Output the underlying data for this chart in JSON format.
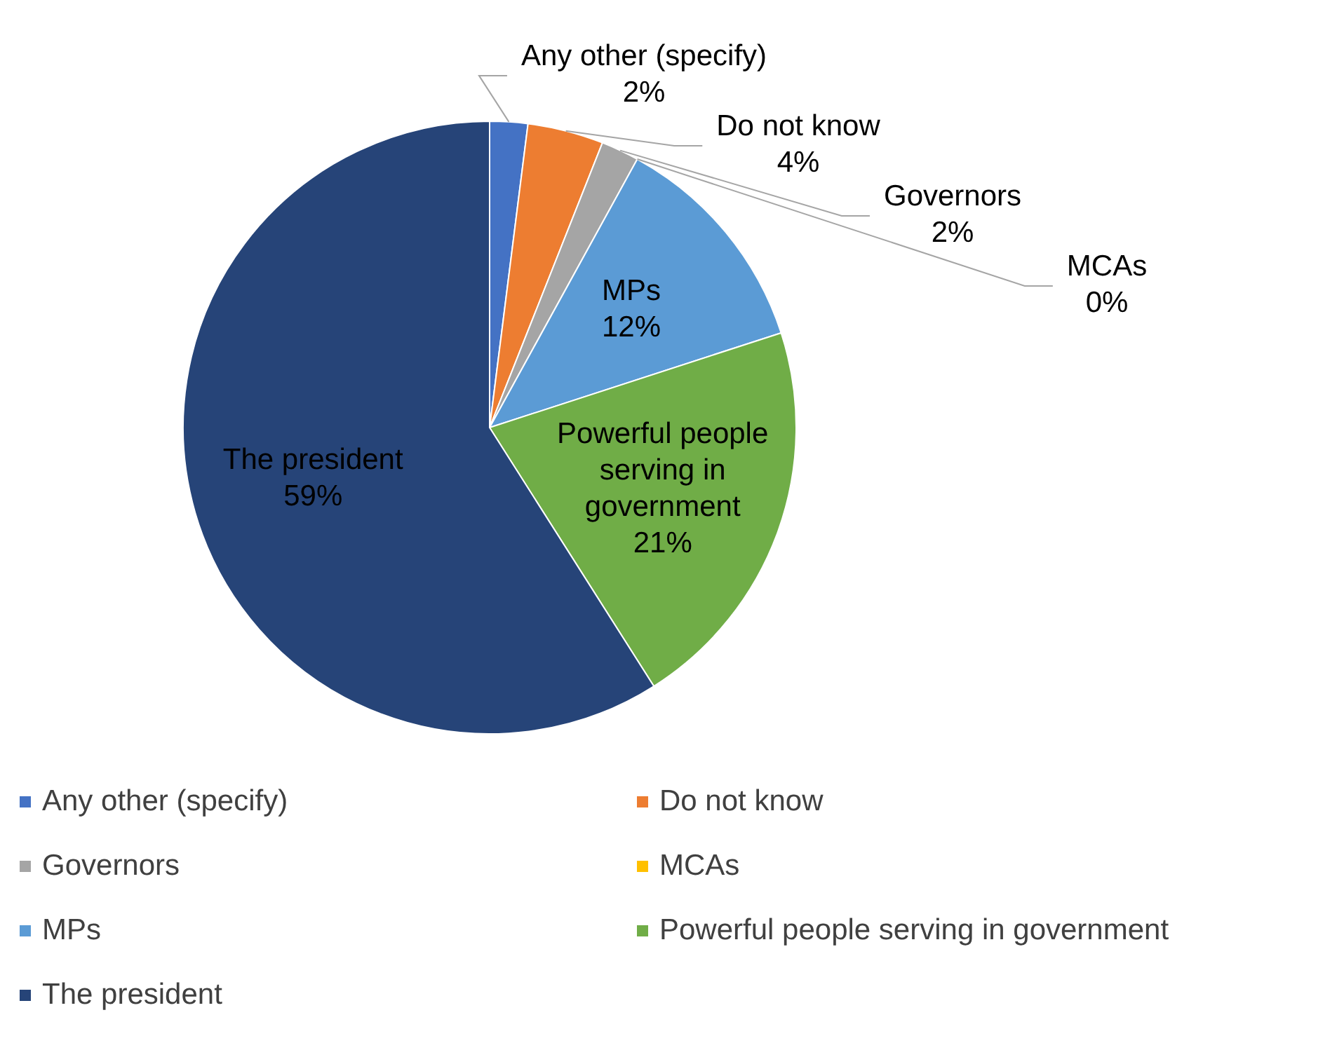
{
  "chart_data": {
    "type": "pie",
    "categories": [
      "Any other (specify)",
      "Do not know",
      "Governors",
      "MCAs",
      "MPs",
      "Powerful people serving in government",
      "The president"
    ],
    "values": [
      2,
      4,
      2,
      0,
      12,
      21,
      59
    ],
    "value_labels": [
      "2%",
      "4%",
      "2%",
      "0%",
      "12%",
      "21%",
      "59%"
    ],
    "colors": [
      "#4472c4",
      "#ed7d31",
      "#a5a5a5",
      "#ffc000",
      "#5b9bd5",
      "#70ad47",
      "#264478"
    ],
    "legend": "bottom"
  }
}
